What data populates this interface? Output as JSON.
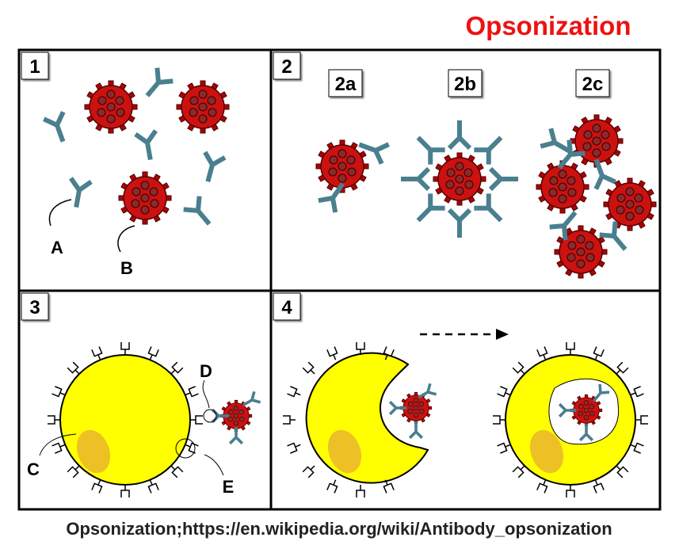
{
  "title": "Opsonization",
  "panels": [
    {
      "label": "1"
    },
    {
      "label": "2"
    },
    {
      "label": "3"
    },
    {
      "label": "4"
    }
  ],
  "sublabels": [
    "2a",
    "2b",
    "2c"
  ],
  "callouts": [
    "A",
    "B",
    "C",
    "D",
    "E"
  ],
  "caption": "Opsonization;https://en.wikipedia.org/wiki/Antibody_opsonization"
}
